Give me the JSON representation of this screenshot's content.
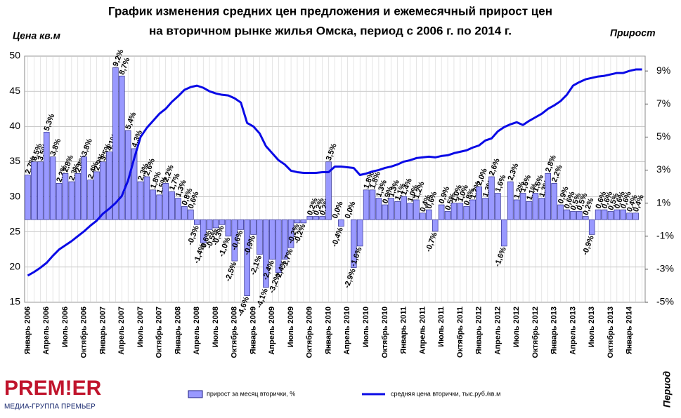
{
  "chart_data": {
    "type": "bar",
    "title": "График изменения средних цен предложения и  ежемесячный прирост цен",
    "subtitle": "на вторичном рынке жилья Омска,  период с 2006 г.  по 2014 г.",
    "y_label": "Цена кв.м",
    "y2_label": "Прирост",
    "x_label": "Период",
    "categories": [
      "Январь 2006",
      null,
      null,
      "Апрель 2006",
      null,
      null,
      "Июль 2006",
      null,
      null,
      "Октябрь 2006",
      null,
      null,
      "Январь 2007",
      null,
      null,
      "Апрель 2007",
      null,
      null,
      "Июль 2007",
      null,
      null,
      "Октябрь 2007",
      null,
      null,
      "Январь 2008",
      null,
      null,
      "Апрель 2008",
      null,
      null,
      "Июль 2008",
      null,
      null,
      "Октябрь 2008",
      null,
      null,
      "Январь 2009",
      null,
      null,
      "Апрель 2009",
      null,
      null,
      "Июль 2009",
      null,
      null,
      "Октябрь 2009",
      null,
      null,
      "Январь 2010",
      null,
      null,
      "Апрель 2010",
      null,
      null,
      "Июль 2010",
      null,
      null,
      "Октябрь 2010",
      null,
      null,
      "Январь 2011",
      null,
      null,
      "Апрель 2011",
      null,
      null,
      "Июль 2011",
      null,
      null,
      "Октябрь 2011",
      null,
      null,
      "Январь 2012",
      null,
      null,
      "Апрель 2012",
      null,
      null,
      "Июль 2012",
      null,
      null,
      "Октябрь 2012",
      null,
      null,
      "Январь 2013",
      null,
      null,
      "Апрель 2013",
      null,
      null,
      "Июль 2013",
      null,
      null,
      "Октябрь 2013",
      null,
      null,
      "Январь 2014",
      null,
      null
    ],
    "series": [
      {
        "name": "прирост за месяц вторички, %",
        "type": "bar",
        "axis": "y2",
        "color": "#9999ff",
        "edge": "#1c1c80",
        "values": [
          2.7,
          3.5,
          3.5,
          5.3,
          3.8,
          2.2,
          2.8,
          2.3,
          2.8,
          3.8,
          2.4,
          2.9,
          3.5,
          4.1,
          9.2,
          8.7,
          5.4,
          4.3,
          2.3,
          2.6,
          1.8,
          1.5,
          2.2,
          1.7,
          1.3,
          0.8,
          0.6,
          -0.3,
          -1.4,
          -0.6,
          -0.5,
          -0.3,
          -1.0,
          -2.5,
          -0.6,
          -4.6,
          -0.9,
          -2.1,
          -4.1,
          -2.4,
          -3.2,
          -2.4,
          -1.7,
          -0.2,
          -0.2,
          0.2,
          0.2,
          0.2,
          3.5,
          0.0,
          -0.4,
          0.0,
          -2.9,
          -1.6,
          1.8,
          1.8,
          1.3,
          0.9,
          1.3,
          1.1,
          1.4,
          1.0,
          1.2,
          0.4,
          0.6,
          -0.7,
          0.9,
          0.5,
          1.0,
          1.0,
          0.8,
          1.2,
          2.0,
          1.3,
          2.6,
          1.6,
          -1.6,
          2.3,
          1.2,
          1.6,
          1.1,
          1.6,
          1.3,
          2.8,
          2.2,
          0.9,
          0.6,
          0.5,
          0.5,
          0.2,
          -0.9,
          0.6,
          0.6,
          0.5,
          0.6,
          0.6,
          0.4,
          0.4,
          null
        ],
        "value_labels": [
          "2,7%",
          "3,5%",
          "3,5%",
          "5,3%",
          "3,8%",
          "2,2%",
          "2,8%",
          "2,3%",
          "2,8%",
          "3,8%",
          "2,4%",
          "2,9%",
          "3,5%",
          "4,1%",
          "9,2%",
          "8,7%",
          "5,4%",
          "4,3%",
          "2,3%",
          "2,6%",
          "1,8%",
          "1,5%",
          "2,2%",
          "1,7%",
          "1,3%",
          "0,8%",
          "0,6%",
          "-0,3%",
          "-1,4%",
          "-0,6%",
          "-0,5%",
          "-0,3%",
          "-1,0%",
          "-2,5%",
          "-0,6%",
          "-4,6%",
          "-0,9%",
          "-2,1%",
          "-4,1%",
          "-2,4%",
          "-3,2%",
          "-2,4%",
          "-1,7%",
          "-0,2%",
          "-0,2%",
          "0,2%",
          "0,2%",
          "0,2%",
          "3,5%",
          "0,0%",
          "-0,4%",
          "0,0%",
          "-2,9%",
          "-1,6%",
          "1,8%",
          "1,8%",
          "1,3%",
          "0,9%",
          "1,3%",
          "1,1%",
          "1,4%",
          "1,0%",
          "1,2%",
          "0,4%",
          "0,6%",
          "-0,7%",
          "0,9%",
          "0,5%",
          "1,0%",
          "1,0%",
          "0,8%",
          "1,2%",
          "2,0%",
          "1,3%",
          "2,6%",
          "1,6%",
          "-1,6%",
          "2,3%",
          "1,2%",
          "1,6%",
          "1,1%",
          "1,6%",
          "1,3%",
          "2,8%",
          "2,2%",
          "0,9%",
          "0,6%",
          "0,5%",
          "0,5%",
          "0,2%",
          "-0,9%",
          "0,6%",
          "0,6%",
          "0,5%",
          "0,6%",
          "0,6%",
          "0,4%",
          "0,4%",
          null
        ]
      },
      {
        "name": "средняя цена вторички, тыс.руб./кв.м",
        "type": "line",
        "color": "#0a0ae6",
        "values": [
          18.8,
          19.3,
          19.9,
          20.6,
          21.6,
          22.5,
          23.1,
          23.7,
          24.4,
          25.1,
          25.9,
          26.6,
          27.6,
          28.3,
          29.1,
          30.1,
          32.3,
          35.5,
          38.5,
          39.8,
          40.8,
          41.8,
          42.5,
          43.5,
          44.3,
          45.2,
          45.6,
          45.8,
          45.5,
          45.0,
          44.7,
          44.5,
          44.4,
          44.0,
          43.4,
          40.5,
          40.0,
          39.0,
          37.2,
          36.2,
          35.2,
          34.6,
          33.7,
          33.5,
          33.4,
          33.4,
          33.4,
          33.5,
          33.5,
          34.3,
          34.3,
          34.2,
          34.1,
          33.1,
          33.3,
          33.6,
          33.8,
          34.1,
          34.3,
          34.6,
          35.0,
          35.2,
          35.5,
          35.6,
          35.7,
          35.6,
          35.8,
          35.9,
          36.2,
          36.4,
          36.6,
          37.0,
          37.3,
          38.0,
          38.3,
          39.3,
          39.9,
          40.3,
          40.6,
          40.2,
          40.8,
          41.3,
          41.8,
          42.5,
          43.0,
          43.6,
          44.5,
          45.8,
          46.3,
          46.7,
          46.9,
          47.1,
          47.2,
          47.4,
          47.6,
          47.6,
          47.9,
          48.1,
          48.1
        ]
      }
    ],
    "ylim": [
      15,
      50
    ],
    "yticks": [
      15,
      20,
      25,
      30,
      35,
      40,
      45,
      50
    ],
    "y2lim": [
      -5,
      9.9
    ],
    "y2ticks": [
      {
        "value": -5,
        "label": "-5%"
      },
      {
        "value": -3,
        "label": "-3%"
      },
      {
        "value": -1,
        "label": "-1%"
      },
      {
        "value": 1,
        "label": "1%"
      },
      {
        "value": 3,
        "label": "3%"
      },
      {
        "value": 5,
        "label": "5%"
      },
      {
        "value": 7,
        "label": "7%"
      },
      {
        "value": 9,
        "label": "9%"
      }
    ],
    "grid": true
  },
  "logo": {
    "name": "PREM!ER",
    "tagline": "МЕДИА-ГРУППА ПРЕМЬЕР"
  }
}
